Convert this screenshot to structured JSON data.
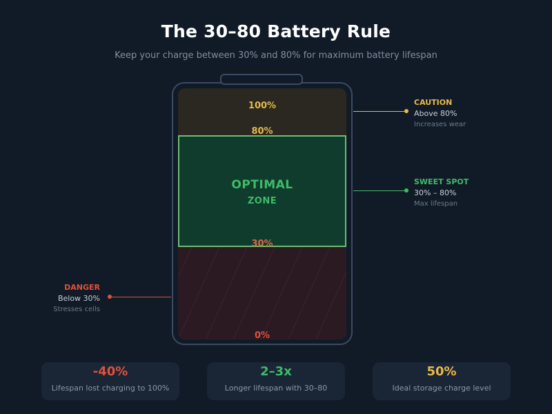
{
  "header": {
    "title": "The 30–80 Battery Rule",
    "subtitle": "Keep your charge between 30% and 80% for maximum battery lifespan"
  },
  "battery": {
    "levels": {
      "top": "100%",
      "upper": "80%",
      "lower": "30%",
      "bottom": "0%"
    },
    "optimal_zone": {
      "line1": "OPTIMAL",
      "line2": "ZONE"
    }
  },
  "callouts": {
    "caution": {
      "title": "CAUTION",
      "range": "Above 80%",
      "note": "Increases wear"
    },
    "sweet_spot": {
      "title": "SWEET SPOT",
      "range": "30% – 80%",
      "note": "Max lifespan"
    },
    "danger": {
      "title": "DANGER",
      "range": "Below 30%",
      "note": "Stresses cells"
    }
  },
  "stats": [
    {
      "value": "-40%",
      "label": "Lifespan lost charging to 100%"
    },
    {
      "value": "2–3x",
      "label": "Longer lifespan with 30–80"
    },
    {
      "value": "50%",
      "label": "Ideal storage charge level"
    }
  ],
  "colors": {
    "caution": "#e9b949",
    "optimal": "#3fbb68",
    "danger": "#e0503c",
    "background": "#111b27"
  }
}
